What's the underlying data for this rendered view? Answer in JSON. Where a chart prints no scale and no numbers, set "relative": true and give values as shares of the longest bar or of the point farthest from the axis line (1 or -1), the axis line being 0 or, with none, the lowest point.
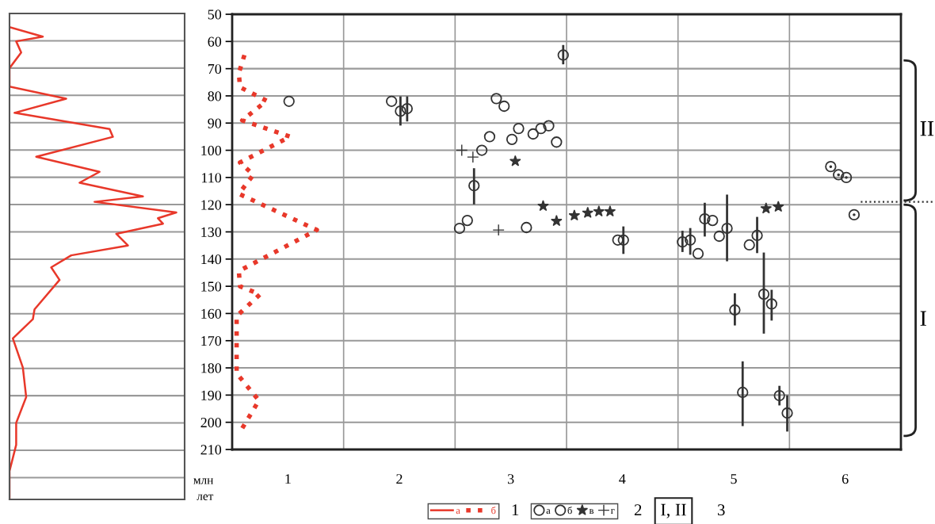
{
  "chart_data": [
    {
      "type": "line",
      "orientation": "horizontal",
      "relative": true,
      "ylim": [
        228,
        50
      ],
      "yticks": [
        60,
        70,
        80,
        90,
        100,
        110,
        120,
        130,
        140,
        150,
        160,
        170,
        180,
        190,
        200,
        210,
        220
      ],
      "tick_labels": false,
      "grid": "y",
      "legend": "bottom",
      "series": [
        {
          "name": "а",
          "color": "#e8382a",
          "line_style": "solid",
          "x": [
            55,
            58.5,
            60.2,
            64.3,
            70,
            76.8,
            81.2,
            86.4,
            92.3,
            95.2,
            102.5,
            108,
            112,
            117,
            119,
            122.9,
            125,
            127,
            130.7,
            135,
            138.6,
            143,
            147.6,
            158.4,
            162,
            169,
            179.7,
            190.5,
            200,
            208,
            217.6,
            228
          ],
          "values": [
            0,
            0.2,
            0.04,
            0.07,
            0,
            0,
            0.34,
            0.03,
            0.6,
            0.62,
            0.16,
            0.54,
            0.42,
            0.8,
            0.51,
            1,
            0.89,
            0.92,
            0.64,
            0.71,
            0.37,
            0.25,
            0.3,
            0.15,
            0.14,
            0.02,
            0.08,
            0.1,
            0.04,
            0.04,
            0,
            0
          ]
        }
      ]
    },
    {
      "type": "scatter",
      "ylim": [
        210,
        50
      ],
      "yticks": [
        50,
        60,
        70,
        80,
        90,
        100,
        110,
        120,
        130,
        140,
        150,
        160,
        170,
        180,
        190,
        200,
        210
      ],
      "ylabel": "млн\nлет",
      "xlim": [
        0.5,
        6.5
      ],
      "xticks": [
        1,
        {
          "value": 1.5,
          "label": null
        },
        2,
        {
          "value": 2.5,
          "label": null
        },
        3,
        {
          "value": 3.5,
          "label": null
        },
        4,
        {
          "value": 4.5,
          "label": null
        },
        5,
        {
          "value": 5.5,
          "label": null
        },
        6
      ],
      "grid": true,
      "legend": "bottom",
      "series": [
        {
          "type": "line",
          "name": "б",
          "color": "#e8382a",
          "line_style": "dotted",
          "marker": "none",
          "x": [
            0.61,
            0.56,
            0.57,
            0.81,
            0.59,
            1.02,
            0.57,
            0.69,
            0.56,
            1.26,
            0.56,
            0.57,
            0.75,
            0.54,
            0.54,
            0.74,
            0.57
          ],
          "values": [
            65,
            71.6,
            76.8,
            81.8,
            89,
            95,
            104.5,
            109,
            116,
            129.3,
            144.4,
            150,
            153,
            161,
            182,
            192,
            203.6
          ]
        },
        {
          "name": "а",
          "color": "#333333",
          "marker": "circle",
          "x": [
            1.01,
            1.93,
            2.01,
            2.07,
            2.87,
            2.94,
            3.47,
            2.74,
            2.81,
            3.01,
            3.07,
            3.2,
            3.27,
            3.34,
            3.41,
            2.67,
            2.54,
            2.61,
            3.14,
            3.96,
            4.01,
            4.54,
            4.61,
            4.68,
            4.74,
            4.81,
            4.87,
            4.94,
            5.14,
            5.21,
            5.01,
            5.27,
            5.34,
            5.08,
            5.41,
            5.48
          ],
          "values": [
            82,
            82,
            85.6,
            84.7,
            81,
            83.8,
            65,
            100,
            95,
            96,
            92,
            94,
            92,
            91,
            97,
            113,
            128.7,
            125.8,
            128.4,
            133,
            133,
            133.7,
            133,
            138,
            125.2,
            125.8,
            131.6,
            128.7,
            134.8,
            131.3,
            158.7,
            152.9,
            156.5,
            189,
            190.2,
            196.6
          ],
          "errors": [
            null,
            null,
            [
              80.6,
              90.5
            ],
            [
              80.6,
              89
            ],
            null,
            null,
            [
              61.7,
              68
            ],
            null,
            null,
            null,
            null,
            null,
            null,
            null,
            null,
            [
              107,
              119.5
            ],
            null,
            null,
            null,
            null,
            [
              128.4,
              137.7
            ],
            [
              130,
              137
            ],
            [
              129,
              138
            ],
            null,
            [
              119.7,
              131.3
            ],
            null,
            null,
            [
              116.7,
              140.4
            ],
            null,
            [
              124.9,
              137.4
            ],
            [
              153,
              164
            ],
            [
              138,
              167
            ],
            [
              151.7,
              162.2
            ],
            [
              178,
              201
            ],
            [
              187,
              193.4
            ],
            [
              190.5,
              203
            ]
          ]
        },
        {
          "name": "б",
          "color": "#333333",
          "marker": "circle",
          "x": [
            5.87,
            5.94,
            6.01,
            6.08
          ],
          "values": [
            106,
            109,
            110,
            123.7
          ]
        },
        {
          "name": "в",
          "color": "#333333",
          "marker": "star",
          "x": [
            3.04,
            3.29,
            3.41,
            3.57,
            3.69,
            3.79,
            3.89,
            5.29,
            5.4
          ],
          "values": [
            104,
            120.5,
            126,
            124,
            123,
            122.5,
            122.5,
            121.4,
            120.8
          ]
        },
        {
          "name": "г",
          "color": "#333333",
          "marker": "cross",
          "x": [
            2.56,
            2.66,
            2.89
          ],
          "values": [
            100,
            102.5,
            129.3
          ]
        }
      ],
      "annotations": [
        "1",
        "2",
        "I, II",
        "3",
        "II",
        "I"
      ]
    }
  ]
}
